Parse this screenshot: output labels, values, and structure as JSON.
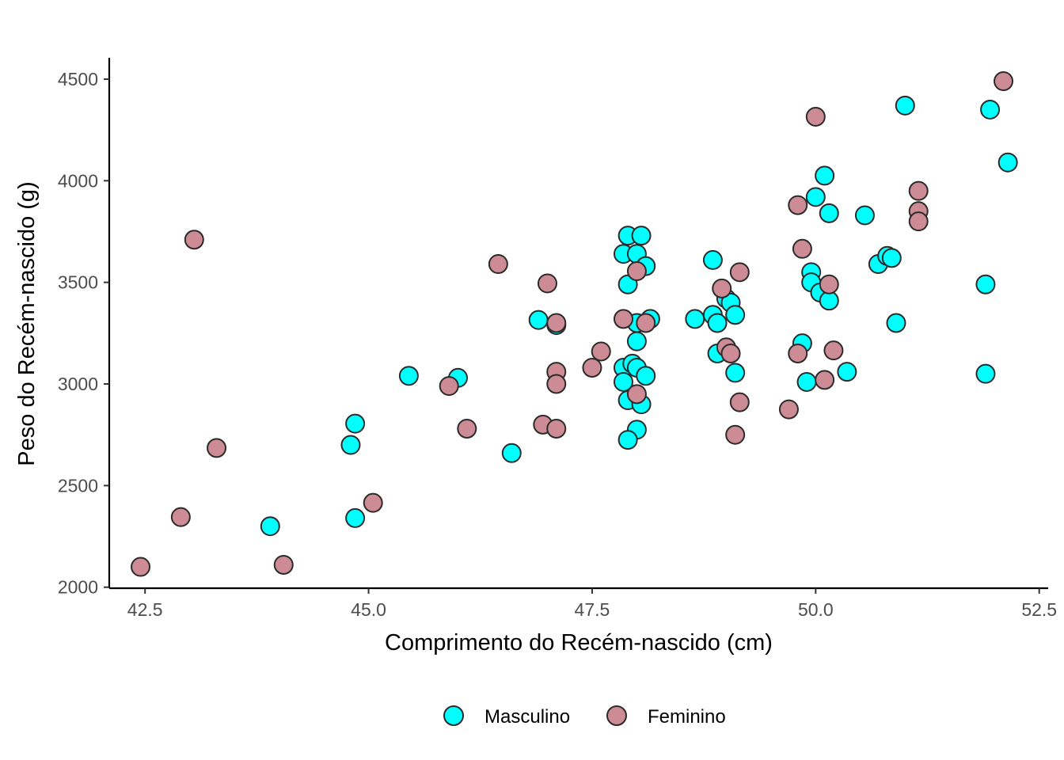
{
  "chart_data": {
    "type": "scatter",
    "xlabel": "Comprimento do Recém-nascido (cm)",
    "ylabel": "Peso do Recém-nascido (g)",
    "xlim": [
      42.1,
      52.6
    ],
    "ylim": [
      1995,
      4605
    ],
    "xticks": [
      "42.5",
      "45.0",
      "47.5",
      "50.0",
      "52.5"
    ],
    "xtick_values": [
      42.5,
      45.0,
      47.5,
      50.0,
      52.5
    ],
    "yticks": [
      "2000",
      "2500",
      "3000",
      "3500",
      "4000",
      "4500"
    ],
    "ytick_values": [
      2000,
      2500,
      3000,
      3500,
      4000,
      4500
    ],
    "grid": false,
    "legend_position": "bottom",
    "marker_stroke": "#2b2b2b",
    "series": [
      {
        "name": "Masculino",
        "color": "#00ffff",
        "points": [
          [
            43.9,
            2300
          ],
          [
            44.8,
            2700
          ],
          [
            44.85,
            2805
          ],
          [
            44.85,
            2340
          ],
          [
            45.45,
            3040
          ],
          [
            46.0,
            3030
          ],
          [
            46.6,
            2660
          ],
          [
            46.9,
            3315
          ],
          [
            47.1,
            3290
          ],
          [
            47.85,
            3640
          ],
          [
            47.9,
            3730
          ],
          [
            48.0,
            3640
          ],
          [
            48.05,
            3730
          ],
          [
            47.9,
            3490
          ],
          [
            48.1,
            3580
          ],
          [
            48.0,
            3300
          ],
          [
            48.15,
            3320
          ],
          [
            48.0,
            3210
          ],
          [
            47.85,
            3080
          ],
          [
            47.95,
            3100
          ],
          [
            48.0,
            3080
          ],
          [
            47.85,
            3010
          ],
          [
            48.1,
            3040
          ],
          [
            47.9,
            2920
          ],
          [
            48.05,
            2900
          ],
          [
            48.0,
            2775
          ],
          [
            47.9,
            2725
          ],
          [
            48.65,
            3320
          ],
          [
            48.85,
            3610
          ],
          [
            48.85,
            3340
          ],
          [
            48.9,
            3300
          ],
          [
            48.9,
            3150
          ],
          [
            49.0,
            3420
          ],
          [
            49.05,
            3400
          ],
          [
            49.1,
            3340
          ],
          [
            49.1,
            3055
          ],
          [
            49.85,
            3200
          ],
          [
            49.9,
            3010
          ],
          [
            50.0,
            3920
          ],
          [
            50.1,
            4025
          ],
          [
            50.15,
            3840
          ],
          [
            49.95,
            3550
          ],
          [
            49.95,
            3500
          ],
          [
            50.05,
            3450
          ],
          [
            50.15,
            3410
          ],
          [
            50.35,
            3060
          ],
          [
            50.55,
            3830
          ],
          [
            50.7,
            3590
          ],
          [
            50.8,
            3630
          ],
          [
            50.85,
            3620
          ],
          [
            50.9,
            3300
          ],
          [
            51.0,
            4370
          ],
          [
            51.95,
            4350
          ],
          [
            52.15,
            4090
          ],
          [
            51.9,
            3490
          ],
          [
            51.9,
            3050
          ]
        ]
      },
      {
        "name": "Feminino",
        "color": "#cd8c95",
        "points": [
          [
            42.45,
            2100
          ],
          [
            42.9,
            2345
          ],
          [
            43.05,
            3710
          ],
          [
            43.3,
            2685
          ],
          [
            44.05,
            2110
          ],
          [
            45.05,
            2415
          ],
          [
            45.9,
            2990
          ],
          [
            46.1,
            2780
          ],
          [
            46.45,
            3590
          ],
          [
            46.95,
            2800
          ],
          [
            47.0,
            3495
          ],
          [
            47.1,
            3300
          ],
          [
            47.1,
            3060
          ],
          [
            47.1,
            3000
          ],
          [
            47.1,
            2780
          ],
          [
            47.5,
            3080
          ],
          [
            47.6,
            3160
          ],
          [
            47.85,
            3320
          ],
          [
            48.0,
            3555
          ],
          [
            48.1,
            3300
          ],
          [
            48.0,
            2950
          ],
          [
            48.95,
            3470
          ],
          [
            49.0,
            3180
          ],
          [
            49.05,
            3150
          ],
          [
            49.1,
            2750
          ],
          [
            49.15,
            3550
          ],
          [
            49.15,
            2910
          ],
          [
            49.7,
            2875
          ],
          [
            49.8,
            3880
          ],
          [
            49.85,
            3665
          ],
          [
            49.8,
            3150
          ],
          [
            50.0,
            4315
          ],
          [
            50.15,
            3490
          ],
          [
            50.2,
            3165
          ],
          [
            50.1,
            3020
          ],
          [
            51.15,
            3950
          ],
          [
            51.15,
            3850
          ],
          [
            51.15,
            3800
          ],
          [
            52.1,
            4490
          ]
        ]
      }
    ]
  }
}
